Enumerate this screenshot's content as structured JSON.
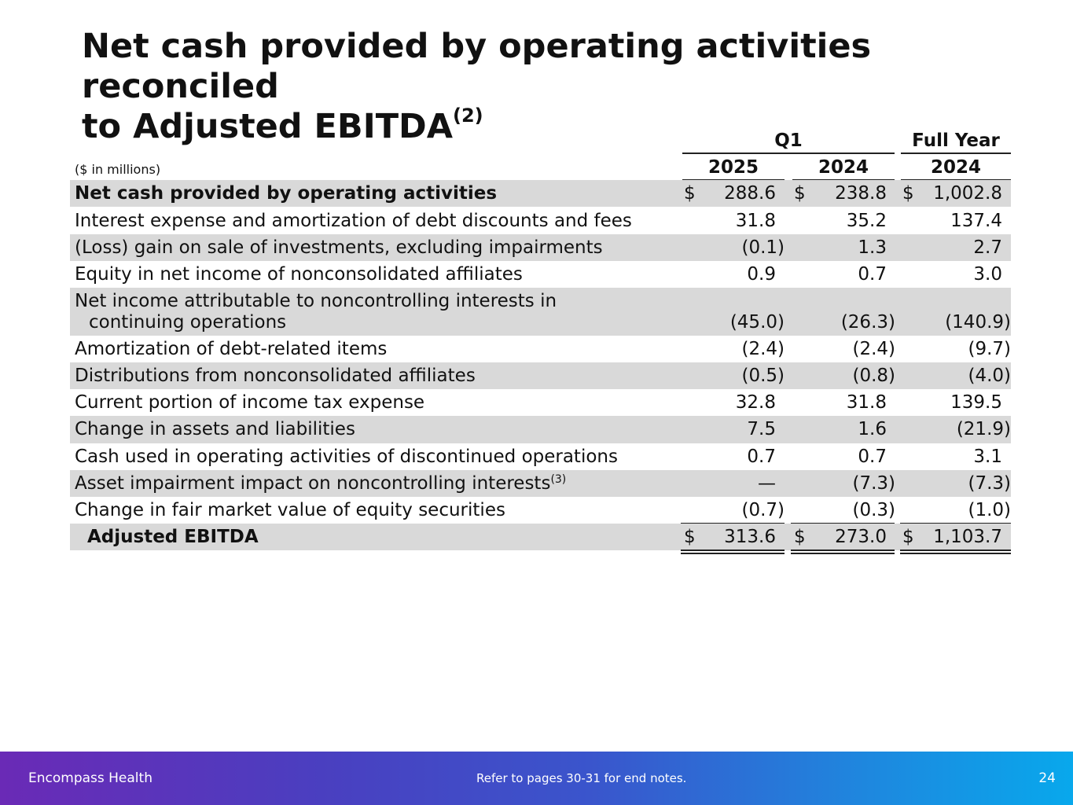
{
  "slide": {
    "title_line1": "Net cash provided by operating activities reconciled",
    "title_line2": "to Adjusted EBITDA",
    "title_sup": "(2)"
  },
  "table": {
    "period_headers": {
      "q1": "Q1",
      "full_year": "Full Year"
    },
    "year_headers": [
      "2025",
      "2024",
      "2024"
    ],
    "units_label": "($ in millions)",
    "rows": [
      {
        "label": "Net cash provided by operating activities",
        "values": [
          "288.6",
          "238.8",
          "1,002.8"
        ],
        "dollar": "$",
        "shaded": true,
        "bold": true
      },
      {
        "label": "Interest expense and amortization of debt discounts and fees",
        "values": [
          "31.8",
          "35.2",
          "137.4"
        ],
        "shaded": false
      },
      {
        "label": "(Loss) gain on sale of investments, excluding impairments",
        "values": [
          "(0.1)",
          "1.3",
          "2.7"
        ],
        "shaded": true
      },
      {
        "label": "Equity in net income of nonconsolidated affiliates",
        "values": [
          "0.9",
          "0.7",
          "3.0"
        ],
        "shaded": false
      },
      {
        "label": "Net income attributable to noncontrolling interests in",
        "label_line2": "continuing operations",
        "values": [
          "(45.0)",
          "(26.3)",
          "(140.9)"
        ],
        "shaded": true
      },
      {
        "label": "Amortization of debt-related items",
        "values": [
          "(2.4)",
          "(2.4)",
          "(9.7)"
        ],
        "shaded": false
      },
      {
        "label": "Distributions from nonconsolidated affiliates",
        "values": [
          "(0.5)",
          "(0.8)",
          "(4.0)"
        ],
        "shaded": true
      },
      {
        "label": "Current portion of income tax expense",
        "values": [
          "32.8",
          "31.8",
          "139.5"
        ],
        "shaded": false
      },
      {
        "label": "Change in assets and liabilities",
        "values": [
          "7.5",
          "1.6",
          "(21.9)"
        ],
        "shaded": true
      },
      {
        "label": "Cash used in operating activities of discontinued operations",
        "values": [
          "0.7",
          "0.7",
          "3.1"
        ],
        "shaded": false
      },
      {
        "label": "Asset impairment impact on noncontrolling interests",
        "label_sup": "(3)",
        "values": [
          "—",
          "(7.3)",
          "(7.3)"
        ],
        "shaded": true
      },
      {
        "label": "Change in fair market value of equity securities",
        "values": [
          "(0.7)",
          "(0.3)",
          "(1.0)"
        ],
        "shaded": false
      },
      {
        "label": "Adjusted EBITDA",
        "values": [
          "313.6",
          "273.0",
          "1,103.7"
        ],
        "dollar": "$",
        "shaded": true,
        "bold": true
      }
    ]
  },
  "footer": {
    "brand": "Encompass Health",
    "note": "Refer to pages 30-31 for end notes.",
    "page_number": "24"
  },
  "colors": {
    "row_shade": "#d9d9d9",
    "footer_gradient_start": "#6a2ab6",
    "footer_gradient_end": "#08a8ec"
  }
}
